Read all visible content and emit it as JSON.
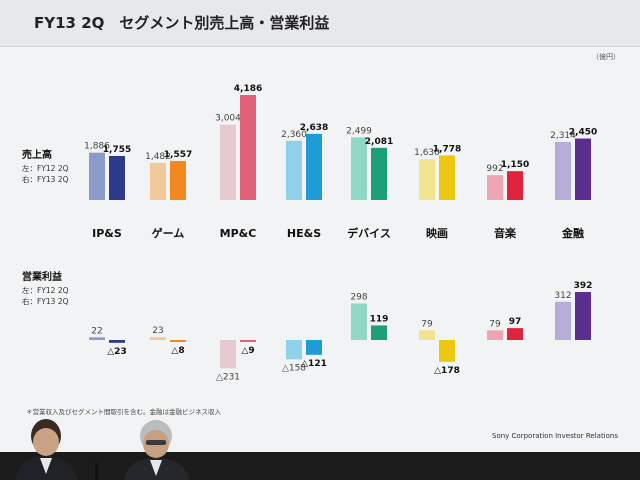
{
  "slide": {
    "title": "FY13 2Q　セグメント別売上高・営業利益",
    "unit": "（億円）",
    "footnote": "＊営業収入及びセグメント間取引を含む。金融は金融ビジネス収入",
    "company": "Sony Corporation  Investor Relations"
  },
  "chart_data": [
    {
      "type": "bar",
      "title": "売上高",
      "categories": [
        "IP&S",
        "ゲーム",
        "MP&C",
        "HE&S",
        "デバイス",
        "映画",
        "音楽",
        "金融"
      ],
      "legend": [
        "左：FY12 2Q",
        "右：FY13 2Q"
      ],
      "series": [
        {
          "name": "FY12 2Q",
          "values": [
            1886,
            1482,
            3004,
            2360,
            2499,
            1630,
            992,
            2314
          ],
          "labels": [
            "1,886",
            "1,482",
            "3,004",
            "2,360",
            "2,499",
            "1,630",
            "992",
            "2,314"
          ]
        },
        {
          "name": "FY13 2Q",
          "values": [
            1755,
            1557,
            4186,
            2638,
            2081,
            1778,
            1150,
            2450
          ],
          "labels": [
            "1,755",
            "1,557",
            "4,186",
            "2,638",
            "2,081",
            "1,778",
            "1,150",
            "2,450"
          ]
        }
      ]
    },
    {
      "type": "bar",
      "title": "営業利益",
      "categories": [
        "IP&S",
        "ゲーム",
        "MP&C",
        "HE&S",
        "デバイス",
        "映画",
        "音楽",
        "金融"
      ],
      "legend": [
        "左：FY12 2Q",
        "右：FY13 2Q"
      ],
      "series": [
        {
          "name": "FY12 2Q",
          "values": [
            22,
            23,
            -231,
            -158,
            298,
            79,
            79,
            312
          ],
          "labels": [
            "22",
            "23",
            "△231",
            "△158",
            "298",
            "79",
            "79",
            "312"
          ]
        },
        {
          "name": "FY13 2Q",
          "values": [
            -23,
            -8,
            -9,
            -121,
            119,
            -178,
            97,
            392
          ],
          "labels": [
            "△23",
            "△8",
            "△9",
            "△121",
            "119",
            "△178",
            "97",
            "392"
          ]
        }
      ]
    }
  ],
  "colors": {
    "light": [
      "#8a9bc8",
      "#f2c99a",
      "#e7c9cf",
      "#8fd0ea",
      "#8fd8c6",
      "#f0e48e",
      "#eea5b3",
      "#b8acd9"
    ],
    "dark": [
      "#2c3a8a",
      "#f08a1e",
      "#e0607a",
      "#1f9bd6",
      "#1f9e7a",
      "#ecc813",
      "#e0243d",
      "#5b2d8e"
    ]
  }
}
